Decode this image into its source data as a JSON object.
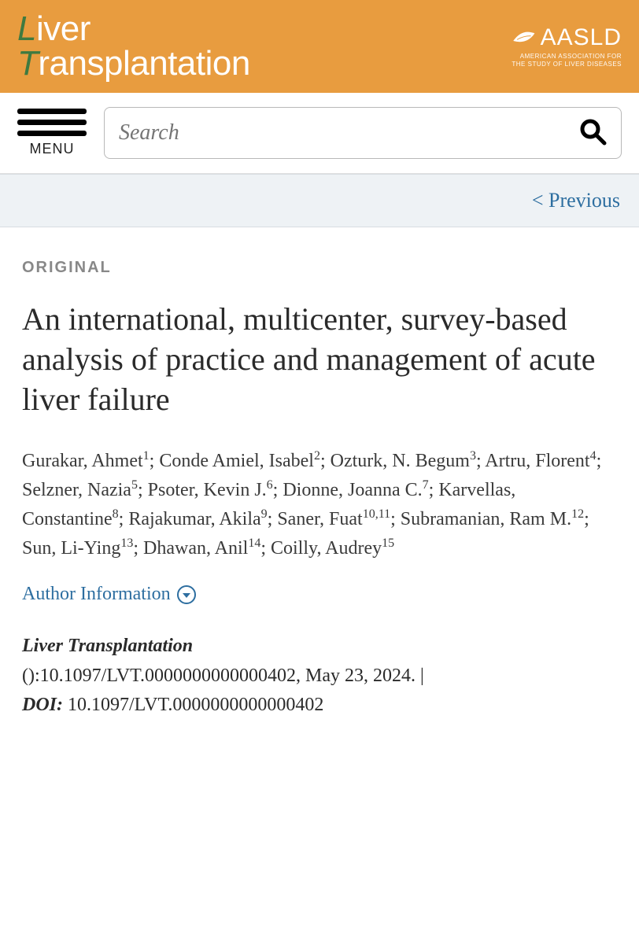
{
  "colors": {
    "banner_bg": "#e89c3f",
    "accent_green": "#3f7a40",
    "link_blue": "#2d6ea0",
    "prev_bg": "#eef2f5",
    "type_gray": "#888888",
    "text": "#2a2a2a"
  },
  "header": {
    "journal_line1_accent": "L",
    "journal_line1_rest": "iver",
    "journal_line2_accent": "T",
    "journal_line2_rest": "ransplantation",
    "org_name": "AASLD",
    "org_sub1": "AMERICAN ASSOCIATION FOR",
    "org_sub2": "THE STUDY OF LIVER DISEASES"
  },
  "nav": {
    "menu_label": "MENU",
    "search_placeholder": "Search"
  },
  "prev_link": "< Previous",
  "article": {
    "type_label": "ORIGINAL",
    "title": "An international, multicenter, survey-based analysis of practice and management of acute liver failure",
    "authors": [
      {
        "name": "Gurakar, Ahmet",
        "affil": "1"
      },
      {
        "name": "Conde Amiel, Isabel",
        "affil": "2"
      },
      {
        "name": "Ozturk, N. Begum",
        "affil": "3"
      },
      {
        "name": "Artru, Florent",
        "affil": "4"
      },
      {
        "name": "Selzner, Nazia",
        "affil": "5"
      },
      {
        "name": "Psoter, Kevin J.",
        "affil": "6"
      },
      {
        "name": "Dionne, Joanna C.",
        "affil": "7"
      },
      {
        "name": "Karvellas, Constantine",
        "affil": "8"
      },
      {
        "name": "Rajakumar, Akila",
        "affil": "9"
      },
      {
        "name": "Saner, Fuat",
        "affil": "10,11"
      },
      {
        "name": "Subramanian, Ram M.",
        "affil": "12"
      },
      {
        "name": "Sun, Li-Ying",
        "affil": "13"
      },
      {
        "name": "Dhawan, Anil",
        "affil": "14"
      },
      {
        "name": "Coilly, Audrey",
        "affil": "15"
      }
    ],
    "author_info_label": "Author Information",
    "journal_name": "Liver Transplantation",
    "citation_prefix": "():",
    "doi_value": "10.1097/LVT.0000000000000402",
    "pub_date": "May 23, 2024.",
    "doi_label": "DOI:"
  }
}
